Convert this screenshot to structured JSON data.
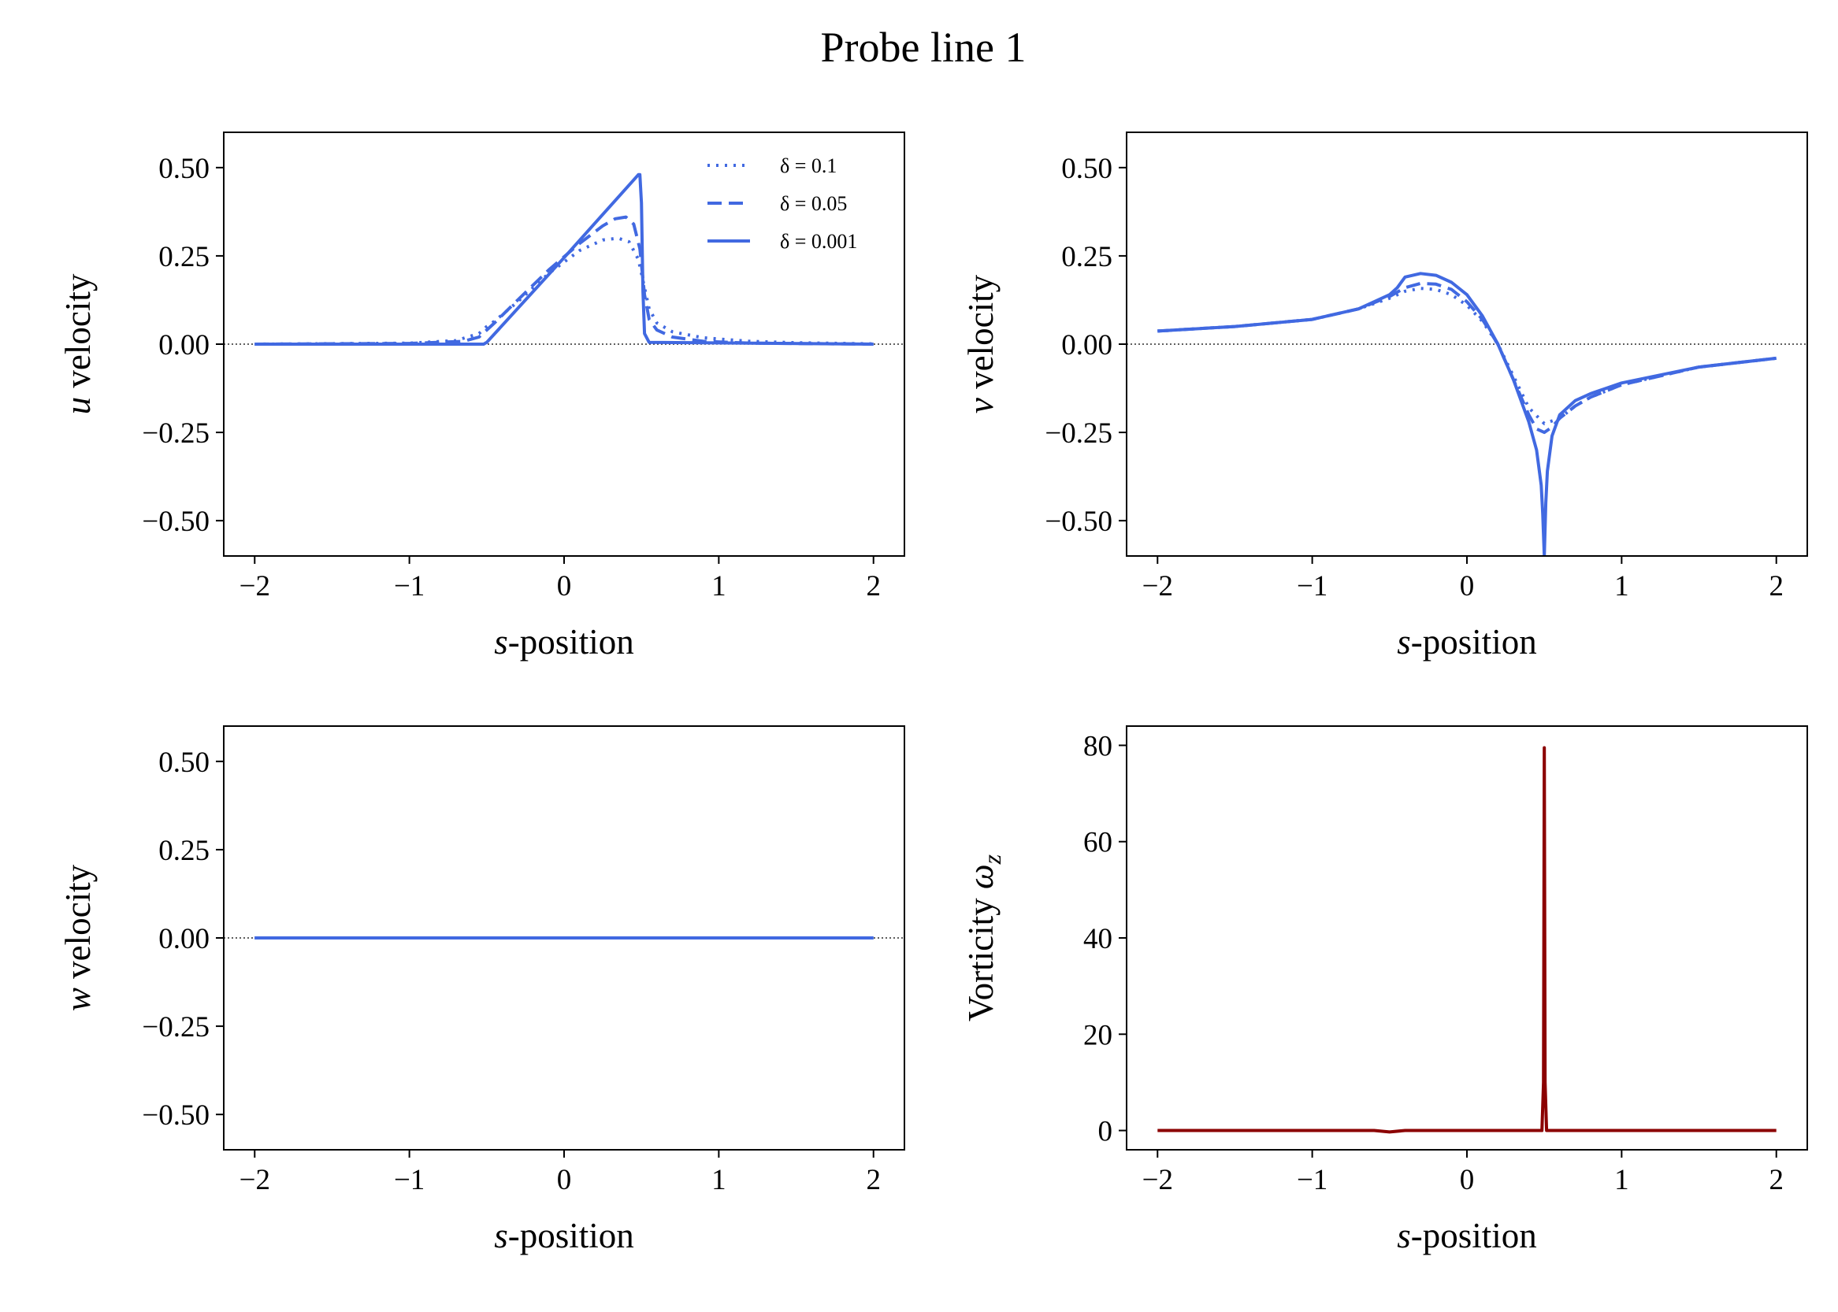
{
  "figure": {
    "title": "Probe line 1"
  },
  "colors": {
    "velocity": "#4169e1",
    "vorticity": "#8b0000"
  },
  "chart_data": [
    {
      "type": "line",
      "panel": "top-left",
      "x_var": "s",
      "x_suffix": "-position",
      "y_var": "u",
      "y_suffix": " velocity",
      "xlim": [
        -2.2,
        2.2
      ],
      "ylim": [
        -0.6,
        0.6
      ],
      "xticks": [
        -2,
        -1,
        0,
        1,
        2
      ],
      "yticks": [
        0.5,
        0.25,
        0,
        -0.25,
        -0.5
      ],
      "ytick_labels": [
        "0.50",
        "0.25",
        "0.00",
        "−0.25",
        "−0.50"
      ],
      "xtick_labels": [
        "−2",
        "−1",
        "0",
        "1",
        "2"
      ],
      "zero_line": true,
      "legend": "upper-right",
      "series": [
        {
          "name": "δ = 0.1",
          "style": "dotted",
          "x": [
            -2.0,
            -1.0,
            -0.7,
            -0.55,
            -0.5,
            -0.45,
            -0.3,
            -0.1,
            0.1,
            0.25,
            0.35,
            0.42,
            0.48,
            0.52,
            0.55,
            0.6,
            0.7,
            0.9,
            1.2,
            1.5,
            2.0
          ],
          "y": [
            0.0,
            0.003,
            0.01,
            0.03,
            0.05,
            0.065,
            0.12,
            0.2,
            0.265,
            0.295,
            0.3,
            0.29,
            0.24,
            0.16,
            0.1,
            0.06,
            0.035,
            0.018,
            0.008,
            0.004,
            0.001
          ]
        },
        {
          "name": "δ = 0.05",
          "style": "dashed",
          "x": [
            -2.0,
            -1.0,
            -0.65,
            -0.55,
            -0.5,
            -0.45,
            -0.3,
            -0.1,
            0.1,
            0.25,
            0.33,
            0.4,
            0.45,
            0.49,
            0.52,
            0.55,
            0.6,
            0.7,
            0.9,
            1.2,
            2.0
          ],
          "y": [
            0.0,
            0.002,
            0.008,
            0.02,
            0.04,
            0.06,
            0.125,
            0.21,
            0.285,
            0.335,
            0.355,
            0.36,
            0.34,
            0.27,
            0.14,
            0.07,
            0.04,
            0.02,
            0.008,
            0.003,
            0.0
          ]
        },
        {
          "name": "δ = 0.001",
          "style": "solid",
          "x": [
            -2.0,
            -0.52,
            -0.5,
            0.0,
            0.46,
            0.48,
            0.49,
            0.5,
            0.51,
            0.52,
            0.55,
            2.0
          ],
          "y": [
            0.0,
            0.0,
            0.005,
            0.245,
            0.47,
            0.48,
            0.48,
            0.4,
            0.15,
            0.03,
            0.005,
            0.0
          ]
        }
      ]
    },
    {
      "type": "line",
      "panel": "top-right",
      "x_var": "s",
      "x_suffix": "-position",
      "y_var": "v",
      "y_suffix": " velocity",
      "xlim": [
        -2.2,
        2.2
      ],
      "ylim": [
        -0.6,
        0.6
      ],
      "xticks": [
        -2,
        -1,
        0,
        1,
        2
      ],
      "yticks": [
        0.5,
        0.25,
        0,
        -0.25,
        -0.5
      ],
      "ytick_labels": [
        "0.50",
        "0.25",
        "0.00",
        "−0.25",
        "−0.50"
      ],
      "xtick_labels": [
        "−2",
        "−1",
        "0",
        "1",
        "2"
      ],
      "zero_line": true,
      "series": [
        {
          "name": "δ = 0.1",
          "style": "dotted",
          "x": [
            -2.0,
            -1.5,
            -1.0,
            -0.7,
            -0.5,
            -0.4,
            -0.3,
            -0.2,
            -0.1,
            0.0,
            0.1,
            0.2,
            0.3,
            0.4,
            0.5,
            0.6,
            0.7,
            0.8,
            1.0,
            1.5,
            2.0
          ],
          "y": [
            0.037,
            0.05,
            0.07,
            0.1,
            0.13,
            0.15,
            0.158,
            0.155,
            0.14,
            0.11,
            0.065,
            0.0,
            -0.09,
            -0.18,
            -0.225,
            -0.21,
            -0.175,
            -0.15,
            -0.115,
            -0.065,
            -0.04
          ]
        },
        {
          "name": "δ = 0.05",
          "style": "dashed",
          "x": [
            -2.0,
            -1.5,
            -1.0,
            -0.7,
            -0.5,
            -0.4,
            -0.3,
            -0.2,
            -0.1,
            0.0,
            0.1,
            0.2,
            0.3,
            0.4,
            0.45,
            0.5,
            0.55,
            0.6,
            0.7,
            0.8,
            1.0,
            1.5,
            2.0
          ],
          "y": [
            0.037,
            0.05,
            0.07,
            0.1,
            0.135,
            0.16,
            0.172,
            0.17,
            0.155,
            0.12,
            0.07,
            0.0,
            -0.1,
            -0.2,
            -0.24,
            -0.25,
            -0.235,
            -0.21,
            -0.175,
            -0.15,
            -0.115,
            -0.065,
            -0.04
          ]
        },
        {
          "name": "δ = 0.001",
          "style": "solid",
          "x": [
            -2.0,
            -1.5,
            -1.0,
            -0.7,
            -0.5,
            -0.45,
            -0.4,
            -0.3,
            -0.2,
            -0.1,
            0.0,
            0.1,
            0.2,
            0.3,
            0.4,
            0.45,
            0.48,
            0.49,
            0.5,
            0.51,
            0.52,
            0.55,
            0.6,
            0.7,
            0.8,
            1.0,
            1.5,
            2.0
          ],
          "y": [
            0.037,
            0.05,
            0.07,
            0.1,
            0.14,
            0.16,
            0.19,
            0.2,
            0.195,
            0.175,
            0.14,
            0.08,
            0.0,
            -0.1,
            -0.22,
            -0.3,
            -0.4,
            -0.48,
            -0.6,
            -0.45,
            -0.36,
            -0.26,
            -0.2,
            -0.16,
            -0.14,
            -0.11,
            -0.065,
            -0.04
          ]
        }
      ]
    },
    {
      "type": "line",
      "panel": "bottom-left",
      "x_var": "s",
      "x_suffix": "-position",
      "y_var": "w",
      "y_suffix": " velocity",
      "xlim": [
        -2.2,
        2.2
      ],
      "ylim": [
        -0.6,
        0.6
      ],
      "xticks": [
        -2,
        -1,
        0,
        1,
        2
      ],
      "yticks": [
        0.5,
        0.25,
        0,
        -0.25,
        -0.5
      ],
      "ytick_labels": [
        "0.50",
        "0.25",
        "0.00",
        "−0.25",
        "−0.50"
      ],
      "xtick_labels": [
        "−2",
        "−1",
        "0",
        "1",
        "2"
      ],
      "zero_line": true,
      "series": [
        {
          "name": "δ = 0.1",
          "style": "dotted",
          "x": [
            -2.0,
            2.0
          ],
          "y": [
            0.0,
            0.0
          ]
        },
        {
          "name": "δ = 0.05",
          "style": "dashed",
          "x": [
            -2.0,
            2.0
          ],
          "y": [
            0.0,
            0.0
          ]
        },
        {
          "name": "δ = 0.001",
          "style": "solid",
          "x": [
            -2.0,
            2.0
          ],
          "y": [
            0.0,
            0.0
          ]
        }
      ]
    },
    {
      "type": "line",
      "panel": "bottom-right",
      "x_var": "s",
      "x_suffix": "-position",
      "y_prefix": "Vorticity ",
      "y_var": "ω",
      "y_sub": "z",
      "xlim": [
        -2.2,
        2.2
      ],
      "ylim": [
        -4,
        84
      ],
      "xticks": [
        -2,
        -1,
        0,
        1,
        2
      ],
      "yticks": [
        0,
        20,
        40,
        60,
        80
      ],
      "ytick_labels": [
        "0",
        "20",
        "40",
        "60",
        "80"
      ],
      "xtick_labels": [
        "−2",
        "−1",
        "0",
        "1",
        "2"
      ],
      "zero_line": false,
      "series": [
        {
          "style": "solid",
          "color": "vorticity",
          "x": [
            -2.0,
            -0.6,
            -0.5,
            -0.4,
            0.485,
            0.495,
            0.5,
            0.505,
            0.515,
            2.0
          ],
          "y": [
            0.0,
            0.0,
            -0.3,
            0.0,
            0.0,
            10.0,
            79.5,
            10.0,
            0.0,
            0.0
          ]
        }
      ]
    }
  ]
}
